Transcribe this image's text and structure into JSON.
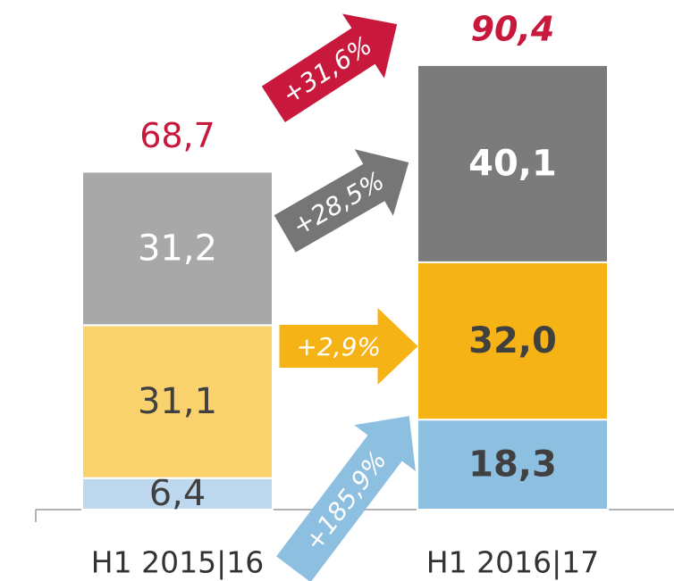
{
  "chart_data": {
    "type": "stacked_bar",
    "categories": [
      "H1 2015|16",
      "H1 2016|17"
    ],
    "series": [
      {
        "values": [
          6.4,
          18.3
        ],
        "value_labels": [
          "6,4",
          "18,3"
        ],
        "colors": [
          "#bcd7ee",
          "#8dbfe0"
        ]
      },
      {
        "values": [
          31.1,
          32.0
        ],
        "value_labels": [
          "31,1",
          "32,0"
        ],
        "colors": [
          "#f9d26e",
          "#f5b316"
        ]
      },
      {
        "values": [
          31.2,
          40.1
        ],
        "value_labels": [
          "31,2",
          "40,1"
        ],
        "colors": [
          "#a8a8a8",
          "#7b7b7b"
        ]
      }
    ],
    "totals": [
      68.7,
      90.4
    ],
    "total_labels": [
      "68,7",
      "90,4"
    ],
    "total_color": "#c8193c",
    "changes": [
      {
        "value": 185.9,
        "label": "+185,9%",
        "color": "#8dbfe0"
      },
      {
        "value": 2.9,
        "label": "+2,9%",
        "color": "#f5b316"
      },
      {
        "value": 28.5,
        "label": "+28,5%",
        "color": "#767676"
      },
      {
        "value": 31.6,
        "label": "+31,6%",
        "color": "#c8193c"
      }
    ]
  }
}
